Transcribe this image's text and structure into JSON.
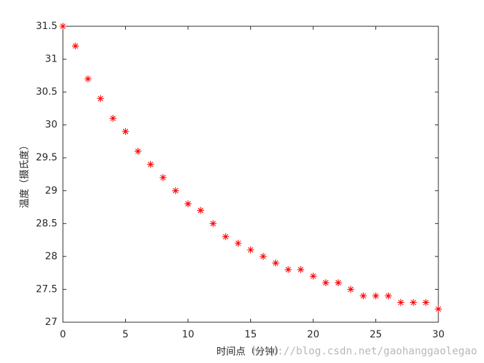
{
  "chart_data": {
    "type": "scatter",
    "xlabel": "时间点（分钟）",
    "ylabel": "温度（摄氏度）",
    "watermark": "http://blog.csdn.net/gaohanggaolegao",
    "x": [
      0,
      1,
      2,
      3,
      4,
      5,
      6,
      7,
      8,
      9,
      10,
      11,
      12,
      13,
      14,
      15,
      16,
      17,
      18,
      19,
      20,
      21,
      22,
      23,
      24,
      25,
      26,
      27,
      28,
      29,
      30
    ],
    "values": [
      31.5,
      31.2,
      30.7,
      30.4,
      30.1,
      29.9,
      29.6,
      29.4,
      29.2,
      29.0,
      28.8,
      28.7,
      28.5,
      28.3,
      28.2,
      28.1,
      28.0,
      27.9,
      27.8,
      27.8,
      27.7,
      27.6,
      27.6,
      27.5,
      27.4,
      27.4,
      27.4,
      27.3,
      27.3,
      27.3,
      27.2
    ],
    "color": "#ff0000",
    "marker": "asterisk",
    "xlim": [
      0,
      30
    ],
    "xticks": [
      0,
      5,
      10,
      15,
      20,
      25,
      30
    ],
    "ylim": [
      27,
      31.5
    ],
    "yticks": [
      27,
      27.5,
      28,
      28.5,
      29,
      29.5,
      30,
      30.5,
      31,
      31.5
    ]
  }
}
